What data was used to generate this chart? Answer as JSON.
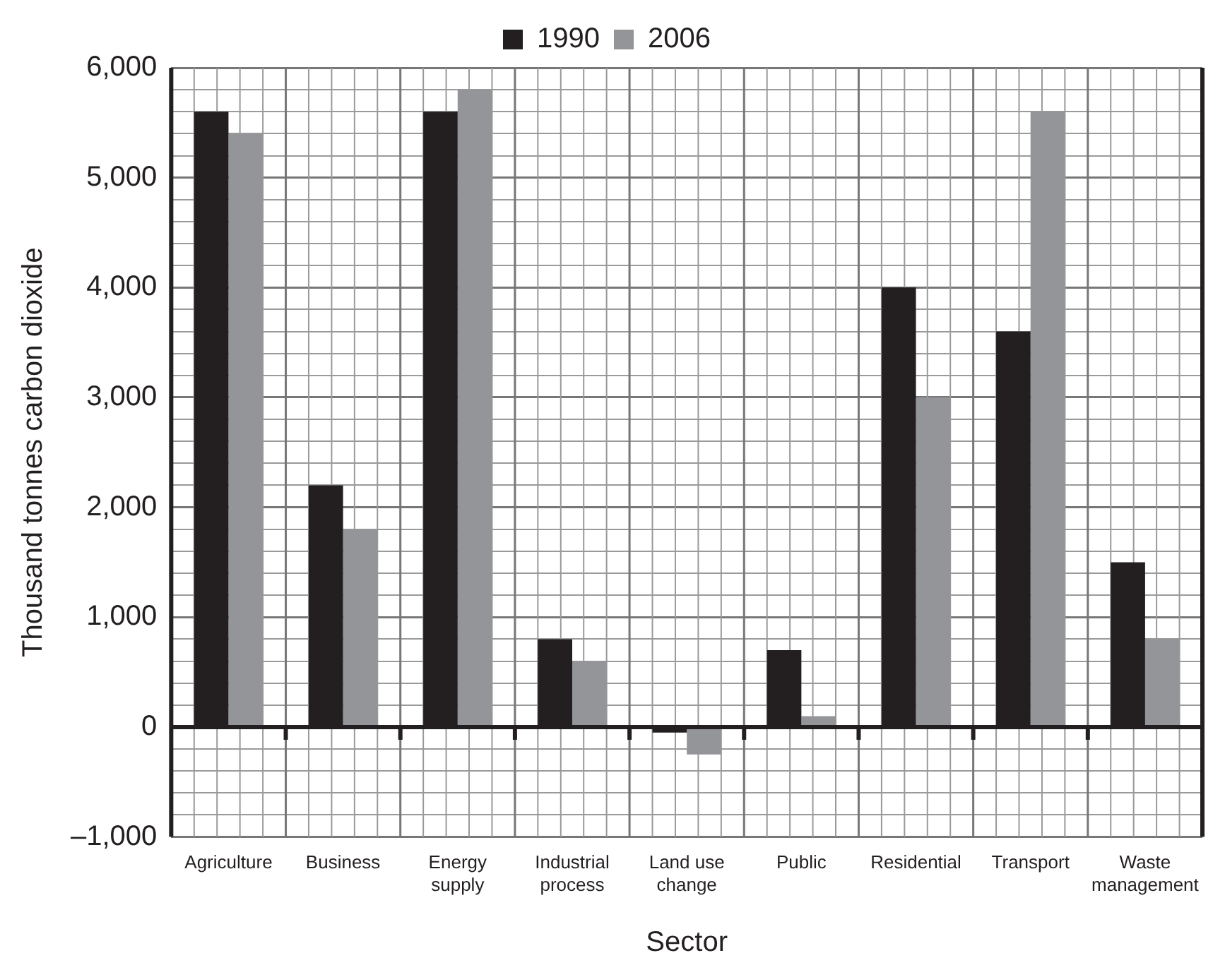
{
  "chart_data": {
    "type": "bar",
    "xlabel": "Sector",
    "ylabel": "Thousand tonnes carbon dioxide",
    "categories": [
      "Agriculture",
      "Business",
      "Energy supply",
      "Industrial process",
      "Land use change",
      "Public",
      "Residential",
      "Transport",
      "Waste management"
    ],
    "series": [
      {
        "name": "1990",
        "color": "#231f20",
        "values": [
          5600,
          2200,
          5600,
          800,
          -50,
          700,
          4000,
          3600,
          1500
        ]
      },
      {
        "name": "2006",
        "color": "#939598",
        "values": [
          5400,
          1800,
          5800,
          600,
          -250,
          100,
          3000,
          5600,
          800
        ]
      }
    ],
    "ylim": [
      -1000,
      6000
    ],
    "yticks": [
      {
        "value": -1000,
        "label": "–1,000"
      },
      {
        "value": -800,
        "label": null
      },
      {
        "value": -600,
        "label": null
      },
      {
        "value": -400,
        "label": null
      },
      {
        "value": -200,
        "label": null
      },
      0,
      {
        "value": 200,
        "label": null
      },
      {
        "value": 400,
        "label": null
      },
      {
        "value": 600,
        "label": null
      },
      {
        "value": 800,
        "label": null
      },
      {
        "value": 1000,
        "label": "1,000"
      },
      {
        "value": 1200,
        "label": null
      },
      {
        "value": 1400,
        "label": null
      },
      {
        "value": 1600,
        "label": null
      },
      {
        "value": 1800,
        "label": null
      },
      {
        "value": 2000,
        "label": "2,000"
      },
      {
        "value": 2200,
        "label": null
      },
      {
        "value": 2400,
        "label": null
      },
      {
        "value": 2600,
        "label": null
      },
      {
        "value": 2800,
        "label": null
      },
      {
        "value": 3000,
        "label": "3,000"
      },
      {
        "value": 3200,
        "label": null
      },
      {
        "value": 3400,
        "label": null
      },
      {
        "value": 3600,
        "label": null
      },
      {
        "value": 3800,
        "label": null
      },
      {
        "value": 4000,
        "label": "4,000"
      },
      {
        "value": 4200,
        "label": null
      },
      {
        "value": 4400,
        "label": null
      },
      {
        "value": 4600,
        "label": null
      },
      {
        "value": 4800,
        "label": null
      },
      {
        "value": 5000,
        "label": "5,000"
      },
      {
        "value": 5200,
        "label": null
      },
      {
        "value": 5400,
        "label": null
      },
      {
        "value": 5600,
        "label": null
      },
      {
        "value": 5800,
        "label": null
      },
      {
        "value": 6000,
        "label": "6,000"
      }
    ],
    "grid": true,
    "legend": "top"
  }
}
